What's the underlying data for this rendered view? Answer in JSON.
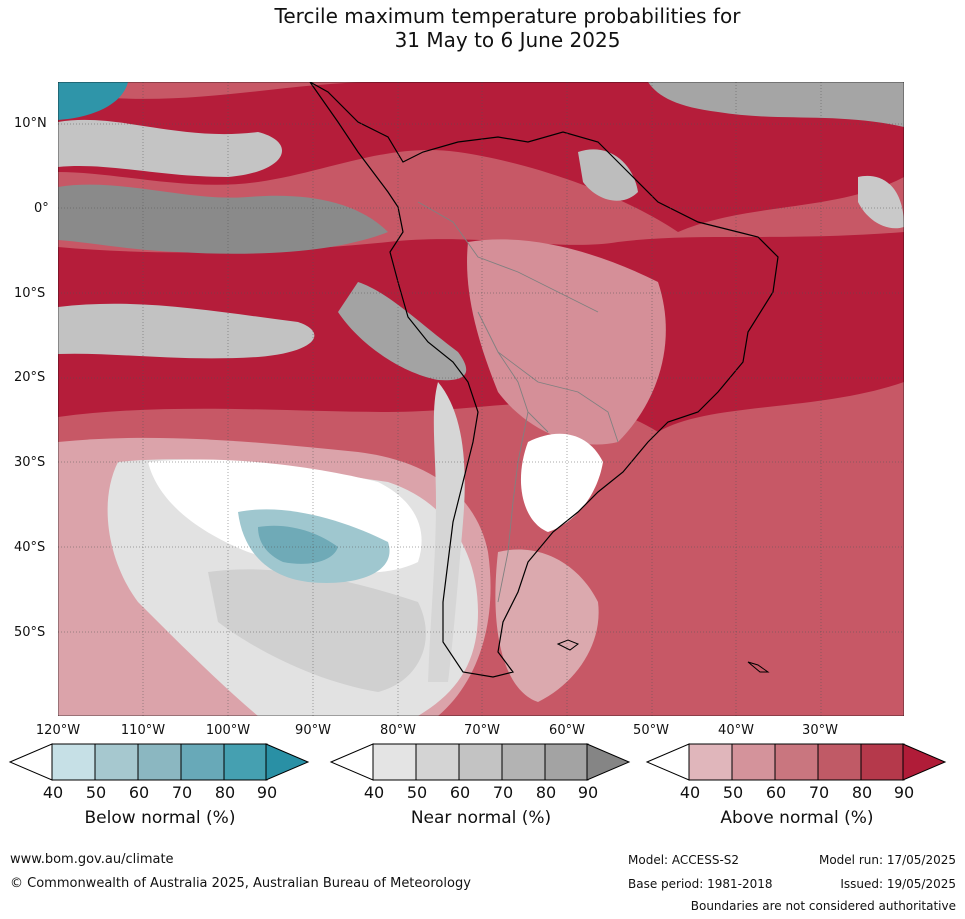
{
  "title": {
    "line1": "Tercile maximum temperature probabilities for",
    "line2": "31 May to 6 June 2025"
  },
  "lat_labels": [
    "10°N",
    "0°",
    "10°S",
    "20°S",
    "30°S",
    "40°S",
    "50°S"
  ],
  "lon_labels": [
    "120°W",
    "110°W",
    "100°W",
    "90°W",
    "80°W",
    "70°W",
    "60°W",
    "50°W",
    "40°W",
    "30°W"
  ],
  "legends": [
    {
      "title": "Below normal (%)",
      "ticks": [
        "40",
        "50",
        "60",
        "70",
        "80",
        "90"
      ],
      "colors": [
        "#c6e0e6",
        "#a6c8cf",
        "#8bb7c1",
        "#68a9b8",
        "#45a0b1",
        "#2990a5"
      ]
    },
    {
      "title": "Near normal (%)",
      "ticks": [
        "40",
        "50",
        "60",
        "70",
        "80",
        "90"
      ],
      "colors": [
        "#e4e4e4",
        "#d4d4d4",
        "#c3c3c3",
        "#b3b3b3",
        "#a3a3a3",
        "#858585"
      ]
    },
    {
      "title": "Above normal (%)",
      "ticks": [
        "40",
        "50",
        "60",
        "70",
        "80",
        "90"
      ],
      "colors": [
        "#e0b6bb",
        "#d4939b",
        "#c9767f",
        "#c05a66",
        "#b5394b",
        "#b01c38"
      ]
    }
  ],
  "footer": {
    "website": "www.bom.gov.au/climate",
    "copyright": "© Commonwealth of Australia 2025, Australian Bureau of Meteorology",
    "model": "Model: ACCESS-S2",
    "base_period": "Base period: 1981-2018",
    "model_run": "Model run: 17/05/2025",
    "issued": "Issued: 19/05/2025",
    "disclaimer": "Boundaries are not considered authoritative"
  }
}
